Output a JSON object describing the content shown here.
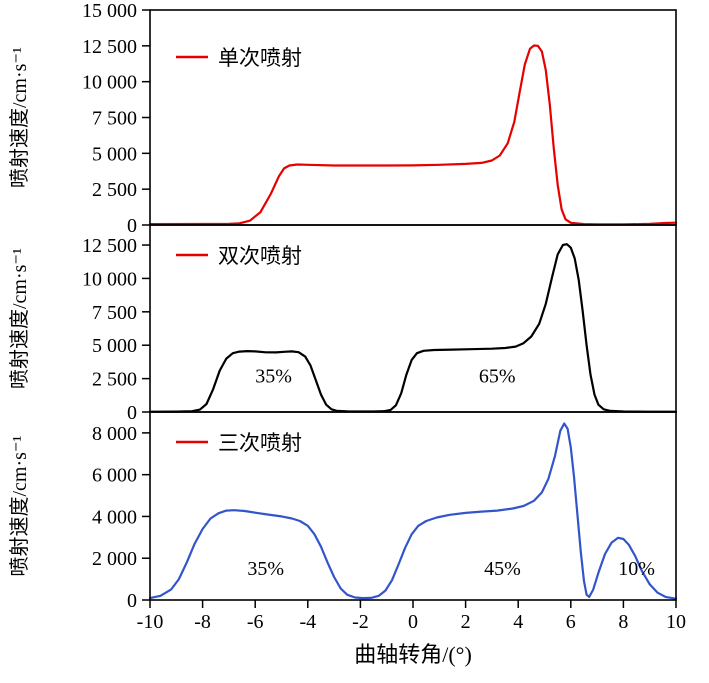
{
  "chart_data": {
    "type": "line",
    "title": "",
    "xlabel": "曲轴转角/(°)",
    "xlim": [
      -10,
      10
    ],
    "x_ticks": [
      {
        "value": -10,
        "label": "-10"
      },
      {
        "value": -8,
        "label": "-8"
      },
      {
        "value": -6,
        "label": "-6"
      },
      {
        "value": -4,
        "label": "-4"
      },
      {
        "value": -2,
        "label": "-2"
      },
      {
        "value": 0,
        "label": "0"
      },
      {
        "value": 2,
        "label": "2"
      },
      {
        "value": 4,
        "label": "4"
      },
      {
        "value": 6,
        "label": "6"
      },
      {
        "value": 8,
        "label": "8"
      },
      {
        "value": 10,
        "label": "10"
      }
    ],
    "panels": [
      {
        "legend": "单次喷射",
        "legend_color": "#e60000",
        "line_color": "#e60000",
        "ylabel": "喷射速度/cm·s⁻¹",
        "ylim": [
          0,
          15000
        ],
        "y_ticks": [
          {
            "value": 0,
            "label": "0"
          },
          {
            "value": 2500,
            "label": "2 500"
          },
          {
            "value": 5000,
            "label": "5 000"
          },
          {
            "value": 7500,
            "label": "7 500"
          },
          {
            "value": 10000,
            "label": "10 000"
          },
          {
            "value": 12500,
            "label": "12 500"
          },
          {
            "value": 15000,
            "label": "15 000"
          }
        ],
        "annotations": [],
        "points": [
          [
            -10,
            60
          ],
          [
            -8,
            70
          ],
          [
            -7,
            80
          ],
          [
            -6.6,
            120
          ],
          [
            -6.2,
            300
          ],
          [
            -5.8,
            900
          ],
          [
            -5.4,
            2200
          ],
          [
            -5.1,
            3400
          ],
          [
            -4.9,
            3950
          ],
          [
            -4.7,
            4150
          ],
          [
            -4.4,
            4220
          ],
          [
            -4,
            4200
          ],
          [
            -3,
            4150
          ],
          [
            -2,
            4150
          ],
          [
            -1,
            4150
          ],
          [
            0,
            4160
          ],
          [
            1,
            4200
          ],
          [
            2,
            4260
          ],
          [
            2.6,
            4330
          ],
          [
            3,
            4500
          ],
          [
            3.3,
            4850
          ],
          [
            3.6,
            5700
          ],
          [
            3.85,
            7200
          ],
          [
            4.05,
            9200
          ],
          [
            4.25,
            11200
          ],
          [
            4.45,
            12300
          ],
          [
            4.6,
            12520
          ],
          [
            4.75,
            12500
          ],
          [
            4.9,
            12100
          ],
          [
            5.05,
            10800
          ],
          [
            5.2,
            8400
          ],
          [
            5.35,
            5400
          ],
          [
            5.5,
            2800
          ],
          [
            5.65,
            1100
          ],
          [
            5.8,
            400
          ],
          [
            6,
            150
          ],
          [
            6.5,
            60
          ],
          [
            7,
            40
          ],
          [
            8,
            40
          ],
          [
            9,
            80
          ],
          [
            9.6,
            140
          ],
          [
            10,
            160
          ]
        ]
      },
      {
        "legend": "双次喷射",
        "legend_color": "#e60000",
        "line_color": "#000000",
        "ylabel": "喷射速度/cm·s⁻¹",
        "ylim": [
          0,
          14000
        ],
        "y_ticks": [
          {
            "value": 0,
            "label": "0"
          },
          {
            "value": 2500,
            "label": "2 500"
          },
          {
            "value": 5000,
            "label": "5 000"
          },
          {
            "value": 7500,
            "label": "7 500"
          },
          {
            "value": 10000,
            "label": "10 000"
          },
          {
            "value": 12500,
            "label": "12 500"
          }
        ],
        "annotations": [
          {
            "x": -5.3,
            "y": 2200,
            "text": "35%"
          },
          {
            "x": 3.2,
            "y": 2200,
            "text": "65%"
          }
        ],
        "points": [
          [
            -10,
            25
          ],
          [
            -9,
            30
          ],
          [
            -8.4,
            60
          ],
          [
            -8.1,
            180
          ],
          [
            -7.85,
            600
          ],
          [
            -7.6,
            1700
          ],
          [
            -7.35,
            3100
          ],
          [
            -7.1,
            4000
          ],
          [
            -6.85,
            4400
          ],
          [
            -6.6,
            4520
          ],
          [
            -6.3,
            4560
          ],
          [
            -6,
            4540
          ],
          [
            -5.6,
            4470
          ],
          [
            -5.2,
            4460
          ],
          [
            -4.9,
            4510
          ],
          [
            -4.6,
            4540
          ],
          [
            -4.35,
            4480
          ],
          [
            -4.1,
            4150
          ],
          [
            -3.9,
            3500
          ],
          [
            -3.7,
            2400
          ],
          [
            -3.5,
            1300
          ],
          [
            -3.3,
            550
          ],
          [
            -3.1,
            200
          ],
          [
            -2.9,
            90
          ],
          [
            -2.5,
            45
          ],
          [
            -2,
            35
          ],
          [
            -1.5,
            35
          ],
          [
            -1.1,
            60
          ],
          [
            -0.85,
            160
          ],
          [
            -0.65,
            500
          ],
          [
            -0.45,
            1400
          ],
          [
            -0.25,
            2800
          ],
          [
            -0.05,
            3900
          ],
          [
            0.15,
            4400
          ],
          [
            0.4,
            4580
          ],
          [
            0.8,
            4640
          ],
          [
            1.5,
            4670
          ],
          [
            2.2,
            4700
          ],
          [
            3,
            4740
          ],
          [
            3.5,
            4790
          ],
          [
            3.9,
            4900
          ],
          [
            4.2,
            5150
          ],
          [
            4.5,
            5650
          ],
          [
            4.8,
            6600
          ],
          [
            5.05,
            8100
          ],
          [
            5.3,
            10200
          ],
          [
            5.5,
            11800
          ],
          [
            5.7,
            12500
          ],
          [
            5.85,
            12560
          ],
          [
            6,
            12300
          ],
          [
            6.15,
            11500
          ],
          [
            6.3,
            9900
          ],
          [
            6.45,
            7600
          ],
          [
            6.6,
            5000
          ],
          [
            6.75,
            2800
          ],
          [
            6.9,
            1300
          ],
          [
            7.05,
            550
          ],
          [
            7.25,
            200
          ],
          [
            7.5,
            80
          ],
          [
            8,
            35
          ],
          [
            9,
            25
          ],
          [
            10,
            20
          ]
        ]
      },
      {
        "legend": "三次喷射",
        "legend_color": "#e60000",
        "line_color": "#3355cc",
        "ylabel": "喷射速度/cm·s⁻¹",
        "ylim": [
          0,
          9000
        ],
        "y_ticks": [
          {
            "value": 0,
            "label": "0"
          },
          {
            "value": 2000,
            "label": "2 000"
          },
          {
            "value": 4000,
            "label": "4 000"
          },
          {
            "value": 6000,
            "label": "6 000"
          },
          {
            "value": 8000,
            "label": "8 000"
          }
        ],
        "annotations": [
          {
            "x": -5.6,
            "y": 1200,
            "text": "35%"
          },
          {
            "x": 3.4,
            "y": 1200,
            "text": "45%"
          },
          {
            "x": 8.5,
            "y": 1200,
            "text": "10%"
          }
        ],
        "points": [
          [
            -10,
            90
          ],
          [
            -9.6,
            200
          ],
          [
            -9.2,
            500
          ],
          [
            -8.9,
            1000
          ],
          [
            -8.6,
            1800
          ],
          [
            -8.3,
            2700
          ],
          [
            -8,
            3400
          ],
          [
            -7.7,
            3900
          ],
          [
            -7.4,
            4150
          ],
          [
            -7.1,
            4280
          ],
          [
            -6.8,
            4300
          ],
          [
            -6.4,
            4260
          ],
          [
            -6,
            4180
          ],
          [
            -5.5,
            4090
          ],
          [
            -5,
            4000
          ],
          [
            -4.6,
            3900
          ],
          [
            -4.3,
            3780
          ],
          [
            -4,
            3550
          ],
          [
            -3.75,
            3150
          ],
          [
            -3.5,
            2550
          ],
          [
            -3.25,
            1800
          ],
          [
            -3,
            1100
          ],
          [
            -2.75,
            550
          ],
          [
            -2.5,
            250
          ],
          [
            -2.2,
            120
          ],
          [
            -1.9,
            90
          ],
          [
            -1.6,
            100
          ],
          [
            -1.3,
            200
          ],
          [
            -1.05,
            450
          ],
          [
            -0.8,
            950
          ],
          [
            -0.55,
            1700
          ],
          [
            -0.3,
            2500
          ],
          [
            -0.05,
            3150
          ],
          [
            0.2,
            3550
          ],
          [
            0.5,
            3780
          ],
          [
            0.9,
            3950
          ],
          [
            1.4,
            4080
          ],
          [
            2,
            4170
          ],
          [
            2.6,
            4230
          ],
          [
            3.2,
            4280
          ],
          [
            3.8,
            4380
          ],
          [
            4.2,
            4500
          ],
          [
            4.6,
            4750
          ],
          [
            4.9,
            5150
          ],
          [
            5.15,
            5800
          ],
          [
            5.4,
            6900
          ],
          [
            5.6,
            8100
          ],
          [
            5.75,
            8450
          ],
          [
            5.88,
            8200
          ],
          [
            6,
            7300
          ],
          [
            6.12,
            5900
          ],
          [
            6.25,
            4100
          ],
          [
            6.38,
            2300
          ],
          [
            6.5,
            900
          ],
          [
            6.6,
            250
          ],
          [
            6.7,
            150
          ],
          [
            6.85,
            500
          ],
          [
            7.05,
            1300
          ],
          [
            7.3,
            2200
          ],
          [
            7.55,
            2750
          ],
          [
            7.8,
            2980
          ],
          [
            8,
            2920
          ],
          [
            8.2,
            2650
          ],
          [
            8.45,
            2100
          ],
          [
            8.7,
            1400
          ],
          [
            9,
            750
          ],
          [
            9.3,
            350
          ],
          [
            9.6,
            150
          ],
          [
            10,
            60
          ]
        ]
      }
    ]
  }
}
